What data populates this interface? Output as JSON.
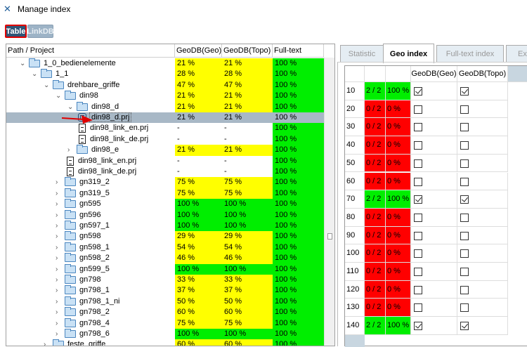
{
  "window": {
    "title": "Manage index",
    "icon": "tools-icon"
  },
  "mode_buttons": {
    "table": "Table",
    "linkdb": "LinkDB"
  },
  "tree": {
    "columns": [
      "Path / Project",
      "GeoDB(Geo)",
      "GeoDB(Topo)",
      "Full-text"
    ],
    "rows": [
      {
        "name": "1_0_bedienelemente",
        "level": 0,
        "type": "folder",
        "expanded": true,
        "geo": "21 %",
        "topo": "21 %",
        "ft": "100 %"
      },
      {
        "name": "1_1",
        "level": 1,
        "type": "folder",
        "expanded": true,
        "geo": "28 %",
        "topo": "28 %",
        "ft": "100 %"
      },
      {
        "name": "drehbare_griffe",
        "level": 2,
        "type": "folder",
        "expanded": true,
        "geo": "47 %",
        "topo": "47 %",
        "ft": "100 %"
      },
      {
        "name": "din98",
        "level": 3,
        "type": "folder",
        "expanded": true,
        "geo": "21 %",
        "topo": "21 %",
        "ft": "100 %"
      },
      {
        "name": "din98_d",
        "level": 4,
        "type": "folder",
        "expanded": true,
        "geo": "21 %",
        "topo": "21 %",
        "ft": "100 %"
      },
      {
        "name": "din98_d.prj",
        "level": 5,
        "type": "part",
        "selected": true,
        "geo": "21 %",
        "topo": "21 %",
        "ft": "100 %"
      },
      {
        "name": "din98_link_en.prj",
        "level": 5,
        "type": "doc",
        "geo": "-",
        "topo": "-",
        "ft": "100 %"
      },
      {
        "name": "din98_link_de.prj",
        "level": 5,
        "type": "doc",
        "geo": "-",
        "topo": "-",
        "ft": "100 %"
      },
      {
        "name": "din98_e",
        "level": 4,
        "type": "folder",
        "expanded": false,
        "geo": "21 %",
        "topo": "21 %",
        "ft": "100 %"
      },
      {
        "name": "din98_link_en.prj",
        "level": 4,
        "type": "doc",
        "geo": "-",
        "topo": "-",
        "ft": "100 %"
      },
      {
        "name": "din98_link_de.prj",
        "level": 4,
        "type": "doc",
        "geo": "-",
        "topo": "-",
        "ft": "100 %"
      },
      {
        "name": "gn319_2",
        "level": 3,
        "type": "folder",
        "expanded": false,
        "geo": "75 %",
        "topo": "75 %",
        "ft": "100 %"
      },
      {
        "name": "gn319_5",
        "level": 3,
        "type": "folder",
        "expanded": false,
        "geo": "75 %",
        "topo": "75 %",
        "ft": "100 %"
      },
      {
        "name": "gn595",
        "level": 3,
        "type": "folder",
        "expanded": false,
        "geo": "100 %",
        "topo": "100 %",
        "ft": "100 %"
      },
      {
        "name": "gn596",
        "level": 3,
        "type": "folder",
        "expanded": false,
        "geo": "100 %",
        "topo": "100 %",
        "ft": "100 %"
      },
      {
        "name": "gn597_1",
        "level": 3,
        "type": "folder",
        "expanded": false,
        "geo": "100 %",
        "topo": "100 %",
        "ft": "100 %"
      },
      {
        "name": "gn598",
        "level": 3,
        "type": "folder",
        "expanded": false,
        "geo": "29 %",
        "topo": "29 %",
        "ft": "100 %"
      },
      {
        "name": "gn598_1",
        "level": 3,
        "type": "folder",
        "expanded": false,
        "geo": "54 %",
        "topo": "54 %",
        "ft": "100 %"
      },
      {
        "name": "gn598_2",
        "level": 3,
        "type": "folder",
        "expanded": false,
        "geo": "46 %",
        "topo": "46 %",
        "ft": "100 %"
      },
      {
        "name": "gn599_5",
        "level": 3,
        "type": "folder",
        "expanded": false,
        "geo": "100 %",
        "topo": "100 %",
        "ft": "100 %"
      },
      {
        "name": "gn798",
        "level": 3,
        "type": "folder",
        "expanded": false,
        "geo": "33 %",
        "topo": "33 %",
        "ft": "100 %"
      },
      {
        "name": "gn798_1",
        "level": 3,
        "type": "folder",
        "expanded": false,
        "geo": "37 %",
        "topo": "37 %",
        "ft": "100 %"
      },
      {
        "name": "gn798_1_ni",
        "level": 3,
        "type": "folder",
        "expanded": false,
        "geo": "50 %",
        "topo": "50 %",
        "ft": "100 %"
      },
      {
        "name": "gn798_2",
        "level": 3,
        "type": "folder",
        "expanded": false,
        "geo": "60 %",
        "topo": "60 %",
        "ft": "100 %"
      },
      {
        "name": "gn798_4",
        "level": 3,
        "type": "folder",
        "expanded": false,
        "geo": "75 %",
        "topo": "75 %",
        "ft": "100 %"
      },
      {
        "name": "gn798_6",
        "level": 3,
        "type": "folder",
        "expanded": false,
        "geo": "100 %",
        "topo": "100 %",
        "ft": "100 %"
      },
      {
        "name": "feste_griffe",
        "level": 2,
        "type": "folder",
        "expanded": false,
        "geo": "60 %",
        "topo": "60 %",
        "ft": "100 %"
      }
    ]
  },
  "tabs": [
    "Statistic",
    "Geo index",
    "Full-text index",
    "Exp"
  ],
  "active_tab": 1,
  "geo_table": {
    "columns": [
      "",
      "",
      "",
      "GeoDB(Geo)",
      "GeoDB(Topo)"
    ],
    "rows": [
      {
        "n": "10",
        "count": "2 / 2",
        "pct": "100 %",
        "geo": true,
        "topo": true
      },
      {
        "n": "20",
        "count": "0 / 2",
        "pct": "0 %",
        "geo": false,
        "topo": false
      },
      {
        "n": "30",
        "count": "0 / 2",
        "pct": "0 %",
        "geo": false,
        "topo": false
      },
      {
        "n": "40",
        "count": "0 / 2",
        "pct": "0 %",
        "geo": false,
        "topo": false
      },
      {
        "n": "50",
        "count": "0 / 2",
        "pct": "0 %",
        "geo": false,
        "topo": false
      },
      {
        "n": "60",
        "count": "0 / 2",
        "pct": "0 %",
        "geo": false,
        "topo": false
      },
      {
        "n": "70",
        "count": "2 / 2",
        "pct": "100 %",
        "geo": true,
        "topo": true
      },
      {
        "n": "80",
        "count": "0 / 2",
        "pct": "0 %",
        "geo": false,
        "topo": false
      },
      {
        "n": "90",
        "count": "0 / 2",
        "pct": "0 %",
        "geo": false,
        "topo": false
      },
      {
        "n": "100",
        "count": "0 / 2",
        "pct": "0 %",
        "geo": false,
        "topo": false
      },
      {
        "n": "110",
        "count": "0 / 2",
        "pct": "0 %",
        "geo": false,
        "topo": false
      },
      {
        "n": "120",
        "count": "0 / 2",
        "pct": "0 %",
        "geo": false,
        "topo": false
      },
      {
        "n": "130",
        "count": "0 / 2",
        "pct": "0 %",
        "geo": false,
        "topo": false
      },
      {
        "n": "140",
        "count": "2 / 2",
        "pct": "100 %",
        "geo": true,
        "topo": true
      }
    ]
  },
  "colors": {
    "green": "#00ee00",
    "yellow": "#ffff00",
    "red": "#ff0000",
    "selected": "#a8b8c6",
    "annotation_arrow": "#e00000"
  }
}
